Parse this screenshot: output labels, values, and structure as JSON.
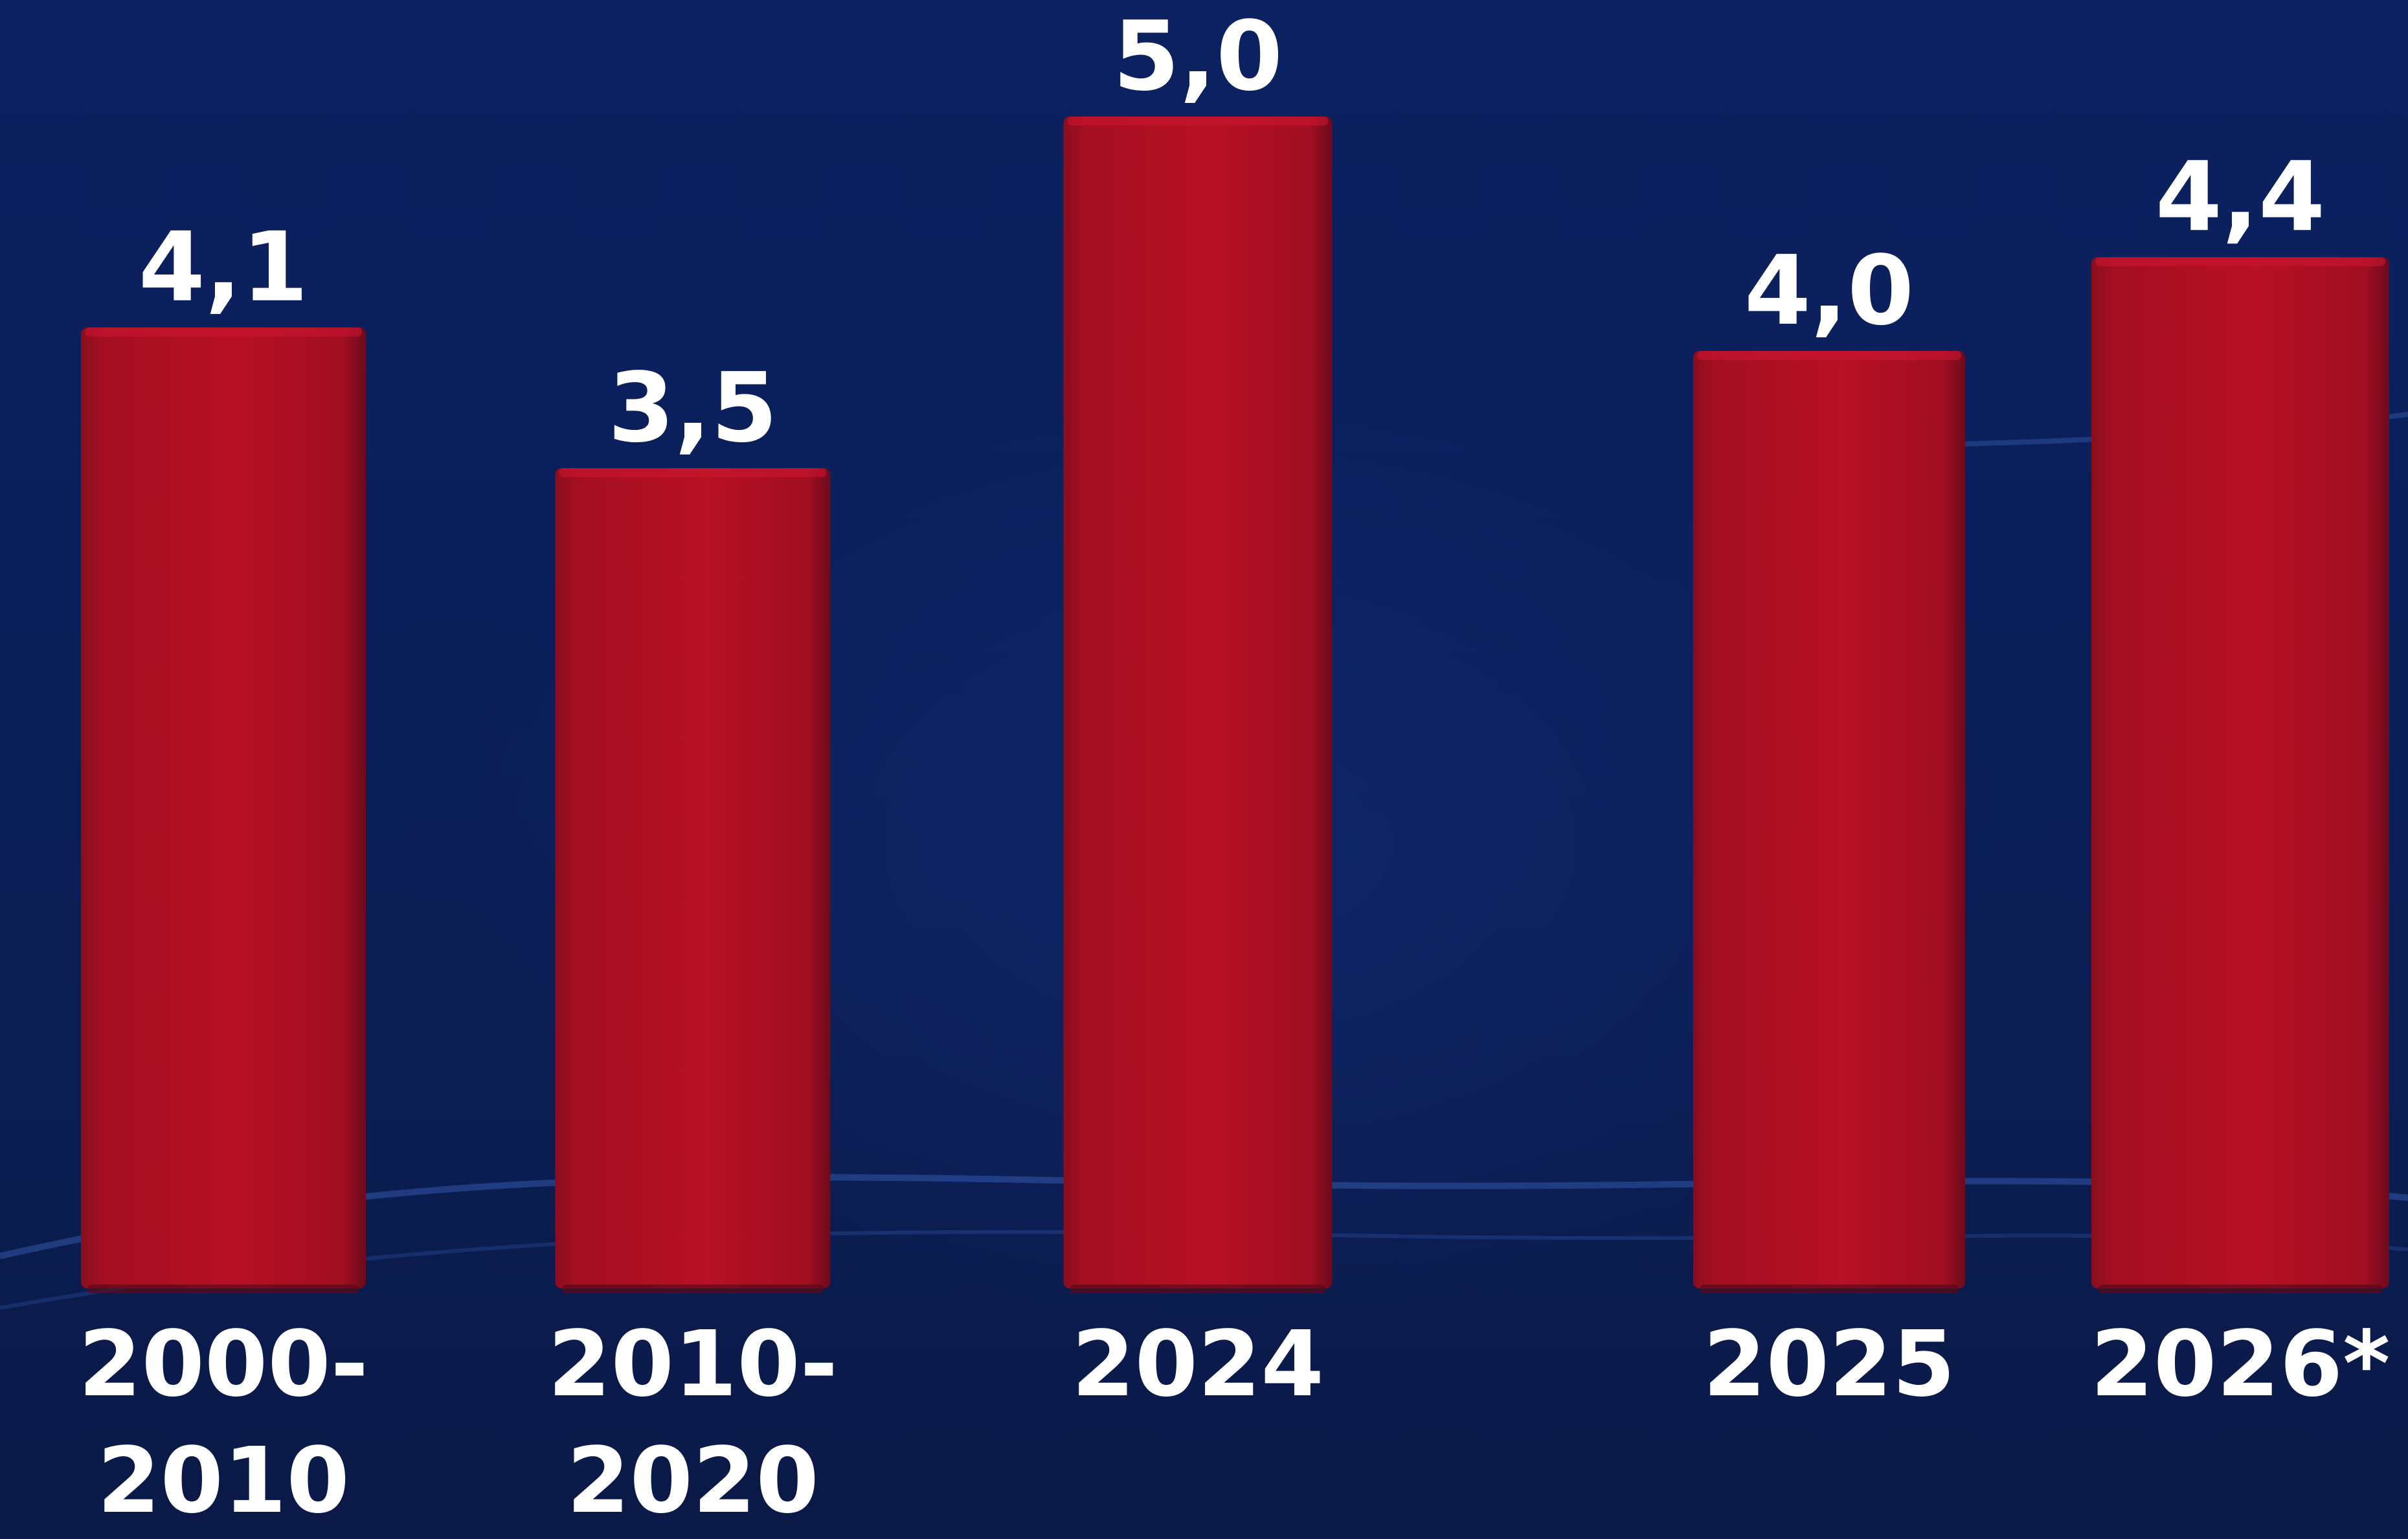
{
  "chart_data": {
    "type": "bar",
    "categories": [
      [
        "2000-",
        "2010"
      ],
      [
        "2010-",
        "2020"
      ],
      [
        "2024"
      ],
      [
        "2025"
      ],
      [
        "2026*"
      ]
    ],
    "values": [
      4.1,
      3.5,
      5.0,
      4.0,
      4.4
    ],
    "value_labels": [
      "4,1",
      "3,5",
      "5,0",
      "4,0",
      "4,4"
    ],
    "ylim": [
      0,
      5.0
    ],
    "grid": false,
    "legend": "none",
    "colors": {
      "bar": "#b20f24",
      "bar_dark": "#7d0b1f",
      "background": "#0b1f58",
      "text": "#ffffff"
    }
  }
}
